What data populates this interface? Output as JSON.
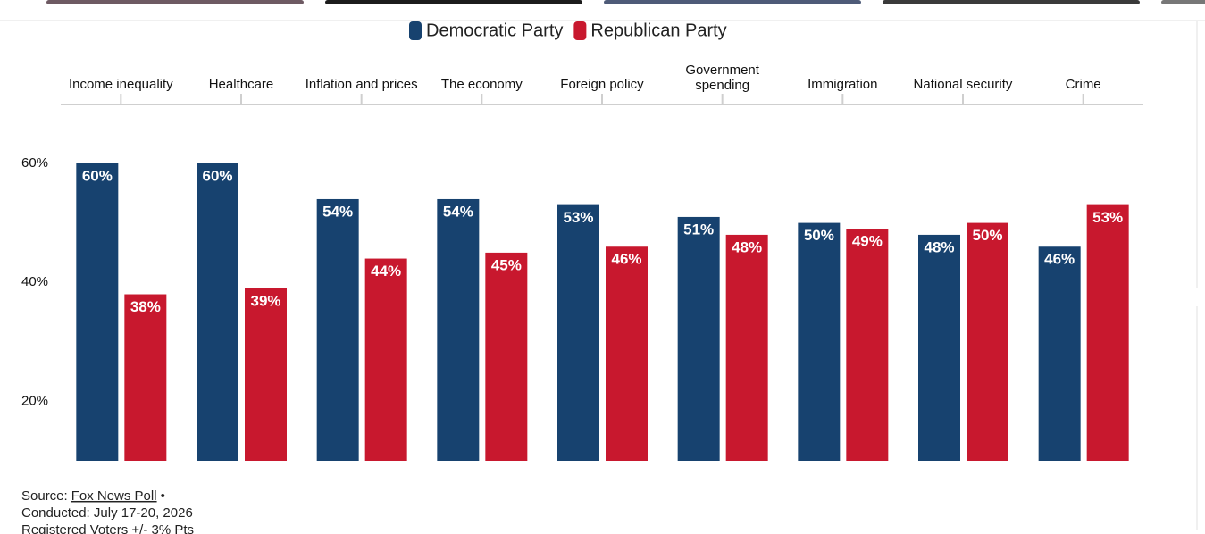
{
  "chart_data": {
    "type": "bar",
    "categories": [
      "Income inequality",
      "Healthcare",
      "Inflation and prices",
      "The economy",
      "Foreign policy",
      "Government spending",
      "Immigration",
      "National security",
      "Crime"
    ],
    "series": [
      {
        "name": "Democratic Party",
        "color": "#17426f",
        "values": [
          60,
          60,
          54,
          54,
          53,
          51,
          50,
          48,
          46
        ],
        "value_labels": [
          "60%",
          "60%",
          "54%",
          "54%",
          "53%",
          "51%",
          "50%",
          "48%",
          "46%"
        ]
      },
      {
        "name": "Republican Party",
        "color": "#c8182e",
        "values": [
          38,
          39,
          44,
          45,
          46,
          48,
          49,
          50,
          53
        ],
        "value_labels": [
          "38%",
          "39%",
          "44%",
          "45%",
          "46%",
          "48%",
          "49%",
          "50%",
          "53%"
        ]
      }
    ],
    "ylim": [
      10,
      60
    ],
    "yticks": [
      {
        "value": 20,
        "label": "20%"
      },
      {
        "value": 40,
        "label": "40%"
      },
      {
        "value": 60,
        "label": "60%"
      }
    ],
    "source": {
      "label": "Source:",
      "link": "Fox News Poll",
      "separator": "•",
      "conducted": "Conducted: July 17-20, 2026",
      "sample": "Registered Voters +/- 3% Pts"
    }
  }
}
